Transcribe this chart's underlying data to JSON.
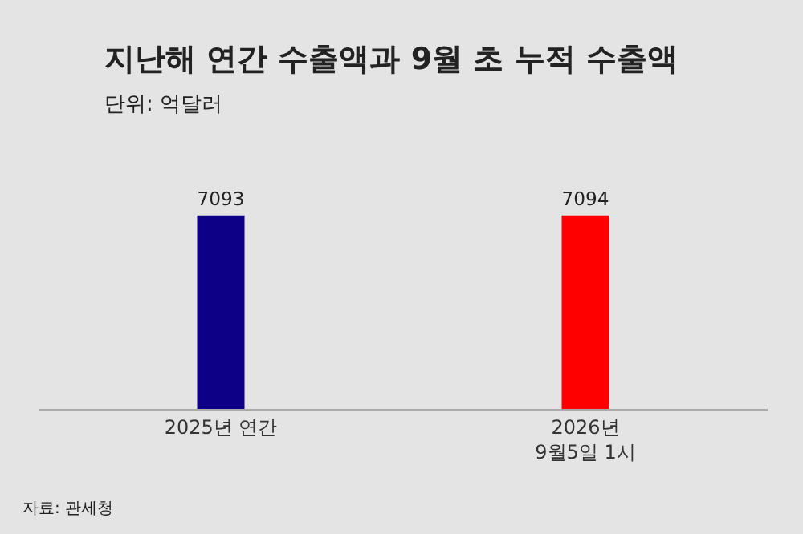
{
  "chart_data": {
    "type": "bar",
    "title": "지난해 연간 수출액과 9월 초 누적 수출액",
    "subtitle": "단위: 억달러",
    "categories": [
      "2025년 연간",
      "2026년\n9월5일 1시"
    ],
    "values": [
      7093,
      7094
    ],
    "colors": [
      "#0d0086",
      "#ff0000"
    ],
    "data_labels": true,
    "annotations": [
      "자료: 관세청"
    ]
  }
}
